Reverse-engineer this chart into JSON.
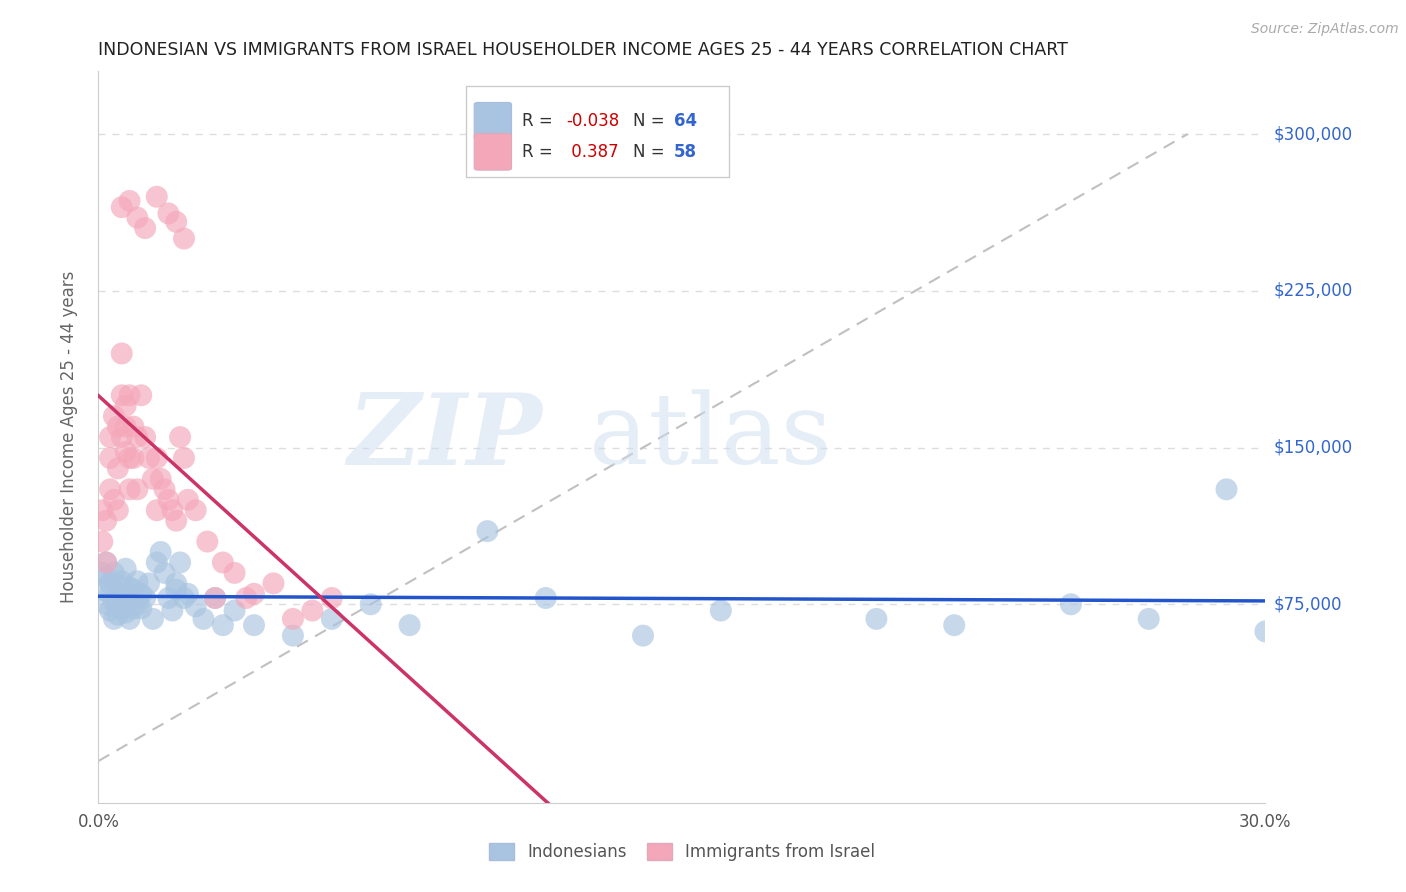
{
  "title": "INDONESIAN VS IMMIGRANTS FROM ISRAEL HOUSEHOLDER INCOME AGES 25 - 44 YEARS CORRELATION CHART",
  "source": "Source: ZipAtlas.com",
  "ylabel": "Householder Income Ages 25 - 44 years",
  "xlim": [
    0.0,
    0.3
  ],
  "ylim": [
    -20000,
    330000
  ],
  "blue_color": "#a8c4e0",
  "pink_color": "#f4a7b9",
  "blue_line_color": "#2255cc",
  "pink_line_color": "#cc3366",
  "legend_R_blue": "-0.038",
  "legend_N_blue": "64",
  "legend_R_pink": "0.387",
  "legend_N_pink": "58",
  "legend_label_blue": "Indonesians",
  "legend_label_pink": "Immigrants from Israel",
  "indonesians_x": [
    0.001,
    0.001,
    0.002,
    0.002,
    0.002,
    0.003,
    0.003,
    0.003,
    0.004,
    0.004,
    0.004,
    0.005,
    0.005,
    0.005,
    0.005,
    0.006,
    0.006,
    0.006,
    0.007,
    0.007,
    0.007,
    0.007,
    0.008,
    0.008,
    0.008,
    0.009,
    0.009,
    0.01,
    0.01,
    0.011,
    0.011,
    0.012,
    0.013,
    0.014,
    0.015,
    0.016,
    0.017,
    0.018,
    0.019,
    0.02,
    0.02,
    0.021,
    0.022,
    0.023,
    0.025,
    0.027,
    0.03,
    0.032,
    0.035,
    0.04,
    0.05,
    0.06,
    0.07,
    0.08,
    0.1,
    0.115,
    0.14,
    0.16,
    0.2,
    0.22,
    0.25,
    0.27,
    0.29,
    0.3
  ],
  "indonesians_y": [
    90000,
    82000,
    95000,
    75000,
    88000,
    80000,
    72000,
    85000,
    76000,
    68000,
    90000,
    74000,
    80000,
    84000,
    70000,
    73000,
    78000,
    86000,
    76000,
    71000,
    79000,
    92000,
    77000,
    83000,
    68000,
    82000,
    73000,
    86000,
    75000,
    80000,
    73000,
    78000,
    85000,
    68000,
    95000,
    100000,
    90000,
    78000,
    72000,
    85000,
    82000,
    95000,
    78000,
    80000,
    74000,
    68000,
    78000,
    65000,
    72000,
    65000,
    60000,
    68000,
    75000,
    65000,
    110000,
    78000,
    60000,
    72000,
    68000,
    65000,
    75000,
    68000,
    130000,
    62000
  ],
  "israel_x": [
    0.001,
    0.001,
    0.002,
    0.002,
    0.003,
    0.003,
    0.003,
    0.004,
    0.004,
    0.005,
    0.005,
    0.005,
    0.006,
    0.006,
    0.006,
    0.007,
    0.007,
    0.007,
    0.008,
    0.008,
    0.008,
    0.009,
    0.009,
    0.01,
    0.01,
    0.011,
    0.012,
    0.013,
    0.014,
    0.015,
    0.015,
    0.016,
    0.017,
    0.018,
    0.019,
    0.02,
    0.021,
    0.022,
    0.023,
    0.025,
    0.028,
    0.03,
    0.032,
    0.035,
    0.038,
    0.04,
    0.045,
    0.05,
    0.055,
    0.06,
    0.006,
    0.008,
    0.01,
    0.012,
    0.015,
    0.018,
    0.02,
    0.022
  ],
  "israel_y": [
    120000,
    105000,
    95000,
    115000,
    145000,
    130000,
    155000,
    125000,
    165000,
    120000,
    140000,
    160000,
    175000,
    195000,
    155000,
    148000,
    170000,
    160000,
    145000,
    130000,
    175000,
    160000,
    145000,
    155000,
    130000,
    175000,
    155000,
    145000,
    135000,
    145000,
    120000,
    135000,
    130000,
    125000,
    120000,
    115000,
    155000,
    145000,
    125000,
    120000,
    105000,
    78000,
    95000,
    90000,
    78000,
    80000,
    85000,
    68000,
    72000,
    78000,
    265000,
    268000,
    260000,
    255000,
    270000,
    262000,
    258000,
    250000
  ]
}
